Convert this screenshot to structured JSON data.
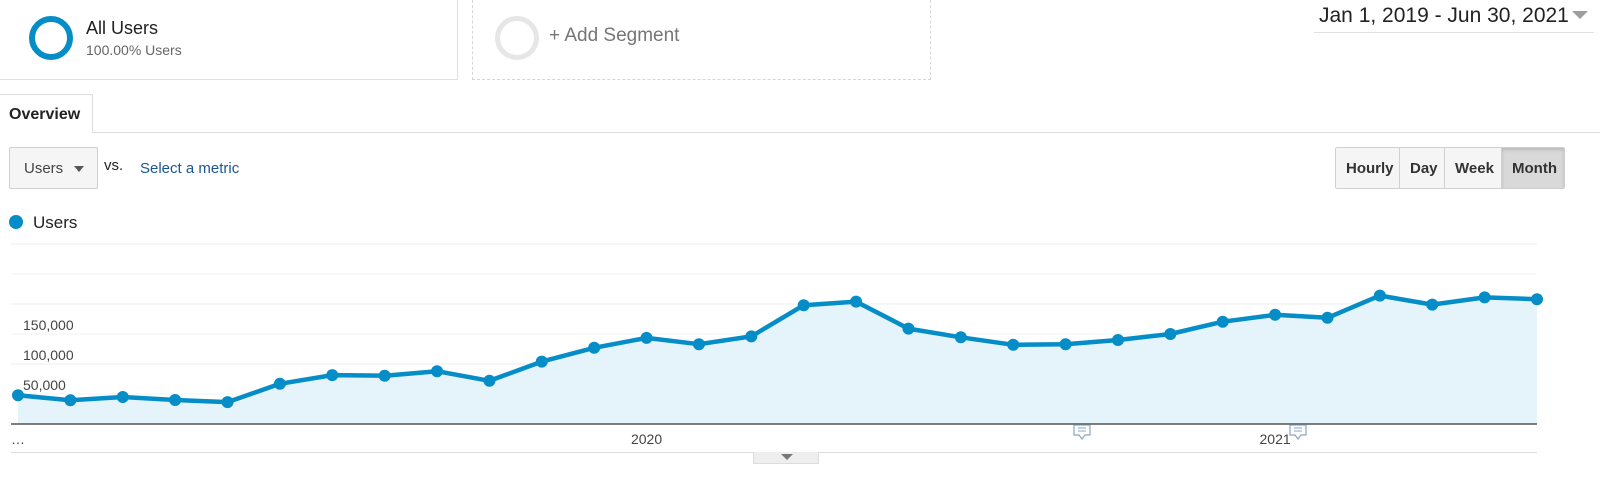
{
  "segments": {
    "active": {
      "title": "All Users",
      "subtitle": "100.00% Users"
    },
    "add_label": "+ Add Segment"
  },
  "date_range": "Jan 1, 2019 - Jun 30, 2021",
  "tabs": {
    "overview": "Overview"
  },
  "controls": {
    "metric": "Users",
    "vs": "vs.",
    "select_metric": "Select a metric",
    "periods": [
      "Hourly",
      "Day",
      "Week",
      "Month"
    ],
    "active_period": "Month"
  },
  "colors": {
    "series": "#058dc7",
    "area": "#e5f3fa",
    "ring_inactive": "#e6e6e6"
  },
  "chart_data": {
    "type": "area",
    "series": [
      {
        "name": "Users",
        "values": [
          48000,
          39500,
          45000,
          40000,
          36500,
          67000,
          81500,
          80500,
          88000,
          72000,
          104000,
          127000,
          143500,
          133000,
          146000,
          198000,
          204000,
          159000,
          144500,
          132000,
          133000,
          140000,
          150000,
          170500,
          182000,
          177000,
          214000,
          199000,
          211000,
          208000
        ]
      }
    ],
    "x_tick_labels": [
      "…",
      "2020",
      "2021"
    ],
    "y_tick_labels": [
      "50,000",
      "100,000",
      "150,000"
    ],
    "ylim": [
      0,
      300000
    ],
    "grid": true,
    "annotation_icons": [
      "note-icon",
      "note-icon"
    ]
  }
}
